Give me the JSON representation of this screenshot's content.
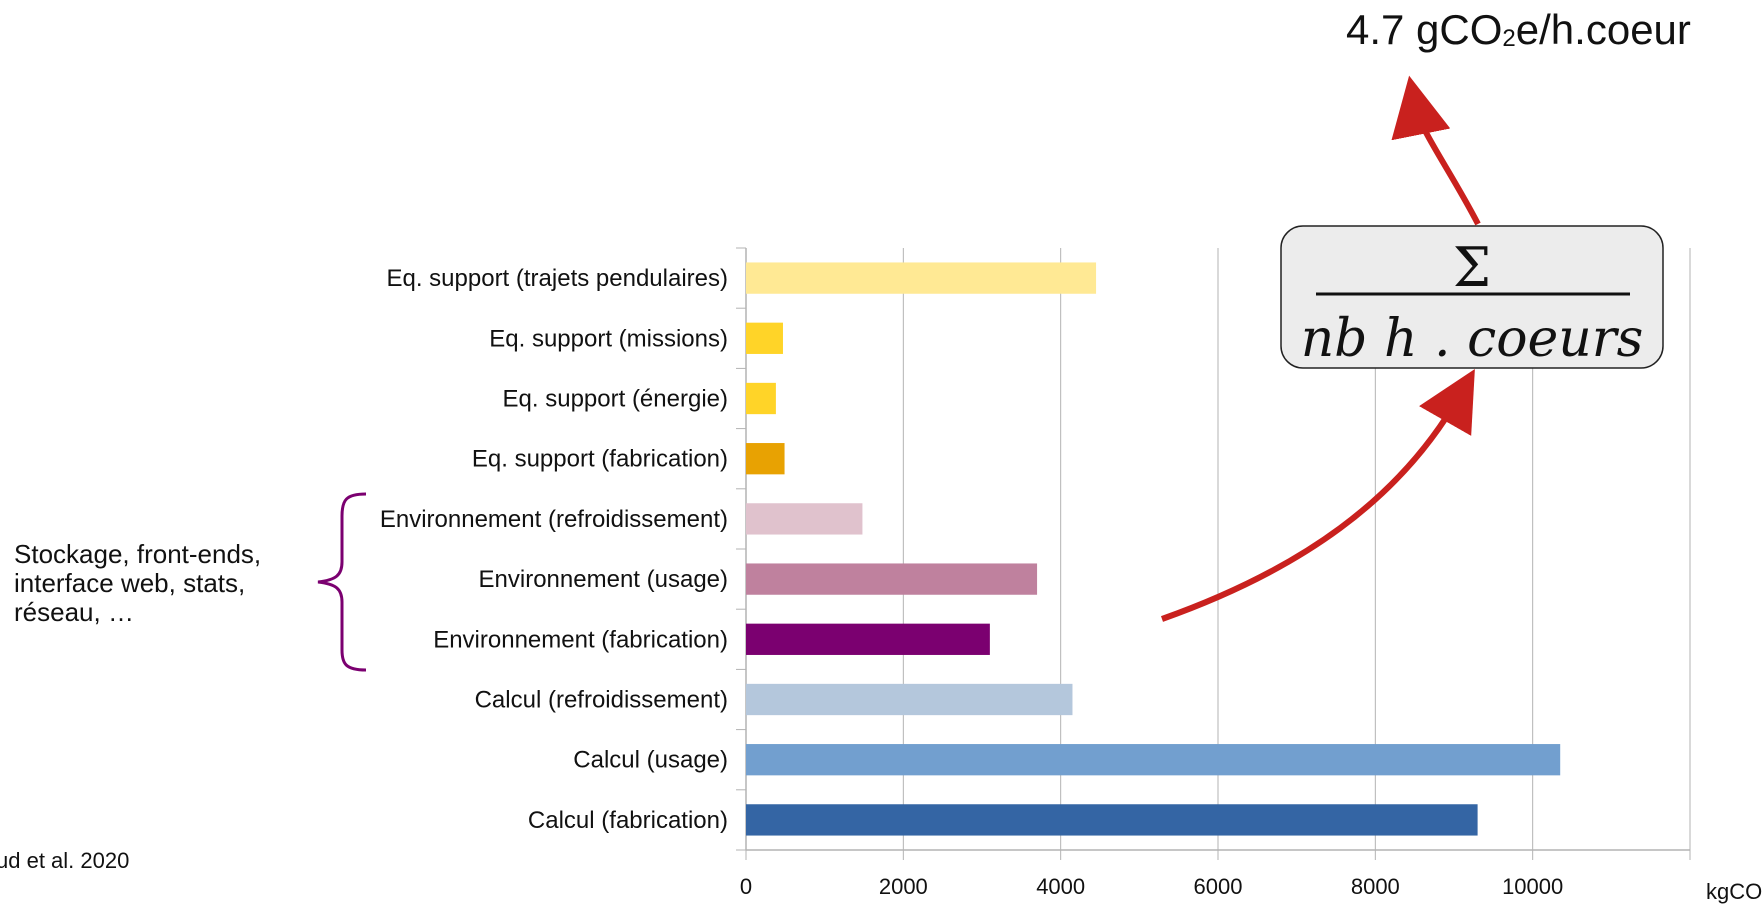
{
  "chart_data": {
    "type": "bar",
    "orientation": "horizontal",
    "categories": [
      "Eq. support (trajets pendulaires)",
      "Eq. support (missions)",
      "Eq. support (énergie)",
      "Eq. support (fabrication)",
      "Environnement (refroidissement)",
      "Environnement (usage)",
      "Environnement (fabrication)",
      "Calcul (refroidissement)",
      "Calcul (usage)",
      "Calcul (fabrication)"
    ],
    "values": [
      4450,
      470,
      380,
      490,
      1480,
      3700,
      3100,
      4150,
      10350,
      9300
    ],
    "colors": [
      "#ffe994",
      "#ffd428",
      "#ffd428",
      "#e8a202",
      "#e0c2cd",
      "#bf819e",
      "#7b0070",
      "#b4c7dc",
      "#729fcf",
      "#3465a4"
    ],
    "xlim": [
      0,
      12000
    ],
    "xticks": [
      0,
      2000,
      4000,
      6000,
      8000,
      10000
    ],
    "xtick_labels": [
      "0",
      "2000",
      "4000",
      "6000",
      "8000",
      "10000"
    ],
    "xlabel": "kgCO",
    "grid": "vertical"
  },
  "annotations": {
    "bracket_line1": "Stockage, front-ends,",
    "bracket_line2": "interface web, stats,",
    "bracket_line3": "réseau, …",
    "citation": "ud et al. 2020",
    "formula_numerator": "Σ",
    "formula_denominator": "nb h . coeurs",
    "result_prefix": "4.7 gCO",
    "result_sub": "2",
    "result_suffix": "e/h.coeur",
    "arrow_color": "#c9211e",
    "bracket_color": "#7b0070"
  }
}
